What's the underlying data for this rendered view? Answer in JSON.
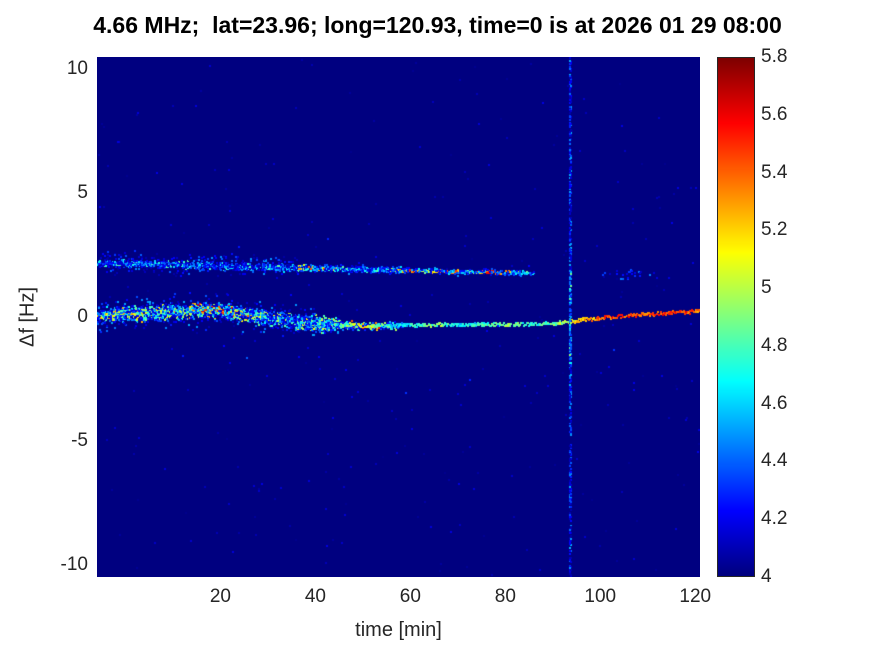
{
  "chart_data": {
    "type": "heatmap",
    "title": "4.66 MHz;  lat=23.96; long=120.93, time=0 is at 2026 01 29 08:00",
    "xlabel": "time [min]",
    "ylabel": "Δf [Hz]",
    "xlim": [
      -6,
      121
    ],
    "ylim": [
      -10.5,
      10.5
    ],
    "xticks": [
      "20",
      "40",
      "60",
      "80",
      "100",
      "120"
    ],
    "yticks": [
      "10",
      "5",
      "0",
      "-5",
      "-10"
    ],
    "grid": false,
    "background_value": 4.0,
    "colorbar": {
      "min": 4,
      "max": 5.8,
      "ticks": [
        "5.8",
        "5.6",
        "5.4",
        "5.2",
        "5",
        "4.8",
        "4.6",
        "4.4",
        "4.2",
        "4"
      ],
      "colormap": "jet",
      "position": "right"
    },
    "features": [
      {
        "type": "band",
        "name": "main-trace-speckle",
        "t_range": [
          -6,
          45
        ],
        "t_step": 0.15,
        "per_step": 6,
        "path": [
          [
            -6,
            0.1
          ],
          [
            0,
            0.15
          ],
          [
            8,
            0.22
          ],
          [
            14,
            0.3
          ],
          [
            20,
            0.28
          ],
          [
            24,
            0.2
          ],
          [
            28,
            0.05
          ],
          [
            33,
            -0.1
          ],
          [
            38,
            -0.2
          ],
          [
            45,
            -0.3
          ]
        ],
        "width": 0.42,
        "values": [
          4.15,
          5.15
        ],
        "bias": 1.7,
        "hot": [
          {
            "t": [
              12,
              26
            ],
            "p": 0.16,
            "values": [
              5.0,
              5.7
            ]
          },
          {
            "t": [
              -6,
              12
            ],
            "p": 0.05,
            "values": [
              4.9,
              5.5
            ]
          }
        ]
      },
      {
        "type": "band",
        "name": "main-trace-core",
        "t_range": [
          -6,
          30
        ],
        "t_step": 0.15,
        "per_step": 2.2,
        "path": [
          [
            -6,
            0.12
          ],
          [
            0,
            0.18
          ],
          [
            8,
            0.24
          ],
          [
            14,
            0.3
          ],
          [
            22,
            0.26
          ],
          [
            30,
            0.05
          ]
        ],
        "width": 0.16,
        "values": [
          4.4,
          5.3
        ],
        "bias": 1.2,
        "hot": [
          {
            "t": [
              14,
              26
            ],
            "p": 0.25,
            "values": [
              5.2,
              5.7
            ]
          }
        ]
      },
      {
        "type": "band",
        "name": "main-trace-halo",
        "t_range": [
          -6,
          40
        ],
        "t_step": 0.15,
        "per_step": 1.4,
        "path": [
          [
            -6,
            0.1
          ],
          [
            8,
            0.22
          ],
          [
            20,
            0.26
          ],
          [
            30,
            0.0
          ],
          [
            40,
            -0.2
          ]
        ],
        "width": 0.85,
        "values": [
          4.08,
          4.55
        ],
        "bias": 1.6
      },
      {
        "type": "band",
        "name": "main-trace-narrow",
        "t_range": [
          40,
          58
        ],
        "t_step": 0.15,
        "per_step": 2.6,
        "path": [
          [
            40,
            -0.2
          ],
          [
            45,
            -0.3
          ],
          [
            50,
            -0.35
          ],
          [
            58,
            -0.3
          ]
        ],
        "width": 0.22,
        "values": [
          4.2,
          5.0
        ],
        "bias": 1.5,
        "hot": [
          {
            "t": [
              47,
              54
            ],
            "p": 0.2,
            "values": [
              5.1,
              5.6
            ]
          }
        ]
      },
      {
        "type": "line",
        "name": "main-trace-line",
        "t_range": [
          45,
          121
        ],
        "t_step": 0.14,
        "path": [
          [
            45,
            -0.3
          ],
          [
            55,
            -0.32
          ],
          [
            65,
            -0.28
          ],
          [
            75,
            -0.28
          ],
          [
            85,
            -0.26
          ],
          [
            90,
            -0.22
          ],
          [
            95,
            -0.1
          ],
          [
            100,
            0.0
          ],
          [
            108,
            0.12
          ],
          [
            115,
            0.2
          ],
          [
            121,
            0.28
          ]
        ],
        "jitter": 0.14,
        "gap_p": 0.12,
        "noise": 0.35,
        "size": 2,
        "values_path": [
          [
            45,
            4.7
          ],
          [
            50,
            5.2
          ],
          [
            53,
            4.8
          ],
          [
            58,
            4.6
          ],
          [
            62,
            4.75
          ],
          [
            66,
            4.9
          ],
          [
            70,
            4.6
          ],
          [
            75,
            4.75
          ],
          [
            80,
            4.9
          ],
          [
            85,
            4.7
          ],
          [
            90,
            4.85
          ],
          [
            95,
            5.15
          ],
          [
            100,
            5.4
          ],
          [
            105,
            5.5
          ],
          [
            110,
            5.45
          ],
          [
            116,
            5.5
          ],
          [
            121,
            5.35
          ]
        ]
      },
      {
        "type": "band",
        "name": "upper-trace-speckle",
        "t_range": [
          -6,
          58
        ],
        "t_step": 0.15,
        "per_step": 2.6,
        "path": [
          [
            -6,
            2.2
          ],
          [
            0,
            2.2
          ],
          [
            10,
            2.15
          ],
          [
            20,
            2.08
          ],
          [
            30,
            2.02
          ],
          [
            40,
            2.0
          ],
          [
            50,
            1.95
          ],
          [
            58,
            1.92
          ]
        ],
        "width": 0.2,
        "values": [
          4.12,
          4.85
        ],
        "bias": 1.8,
        "hot": [
          {
            "t": [
              36,
              44
            ],
            "p": 0.13,
            "values": [
              5.0,
              5.6
            ]
          }
        ]
      },
      {
        "type": "band",
        "name": "upper-trace-halo",
        "t_range": [
          -6,
          36
        ],
        "t_step": 0.15,
        "per_step": 0.9,
        "path": [
          [
            -6,
            2.25
          ],
          [
            10,
            2.2
          ],
          [
            25,
            2.15
          ],
          [
            36,
            2.05
          ]
        ],
        "width": 0.65,
        "values": [
          4.06,
          4.5
        ],
        "bias": 1.7
      },
      {
        "type": "line",
        "name": "upper-trace-line",
        "t_range": [
          55,
          86
        ],
        "t_step": 0.15,
        "path": [
          [
            55,
            1.93
          ],
          [
            60,
            1.9
          ],
          [
            65,
            1.88
          ],
          [
            70,
            1.86
          ],
          [
            75,
            1.85
          ],
          [
            80,
            1.83
          ],
          [
            86,
            1.8
          ]
        ],
        "jitter": 0.12,
        "gap_p": 0.3,
        "noise": 0.4,
        "size": 2,
        "values_path": [
          [
            55,
            4.8
          ],
          [
            58,
            5.3
          ],
          [
            61,
            5.5
          ],
          [
            63,
            4.9
          ],
          [
            66,
            5.4
          ],
          [
            69,
            5.5
          ],
          [
            71,
            4.7
          ],
          [
            74,
            5.2
          ],
          [
            77,
            5.5
          ],
          [
            80,
            5.3
          ],
          [
            83,
            4.8
          ],
          [
            86,
            4.6
          ]
        ]
      },
      {
        "type": "band",
        "name": "upper-trace-line-speckle",
        "t_range": [
          55,
          86
        ],
        "t_step": 0.2,
        "per_step": 1.2,
        "path": [
          [
            55,
            1.93
          ],
          [
            70,
            1.86
          ],
          [
            86,
            1.8
          ]
        ],
        "width": 0.18,
        "values": [
          4.15,
          4.7
        ],
        "bias": 1.6
      },
      {
        "type": "vline",
        "name": "interference-line",
        "t": 93.5,
        "t_width": 0.3,
        "f_range": [
          -10.5,
          10.5
        ],
        "count": 520,
        "values": [
          4.08,
          4.55
        ],
        "bias": 1.6
      },
      {
        "type": "vline",
        "name": "interference-line-core",
        "t": 93.5,
        "t_width": 0.25,
        "f_range": [
          -2,
          2
        ],
        "count": 70,
        "values": [
          4.3,
          5.0
        ],
        "bias": 1.4
      },
      {
        "type": "dots",
        "name": "upper-trace-remnant",
        "count": 26,
        "t_range": [
          100,
          113
        ],
        "f_range": [
          1.55,
          1.95
        ],
        "values": [
          4.1,
          4.55
        ],
        "bias": 1.4
      },
      {
        "type": "dots",
        "name": "background-noise",
        "count": 300,
        "t_range": [
          -6,
          121
        ],
        "f_range": [
          -10.5,
          10.5
        ],
        "values": [
          4.02,
          4.18
        ],
        "bias": 1.0
      },
      {
        "type": "dots",
        "name": "sparse-speckle",
        "count": 18,
        "t_range": [
          -6,
          121
        ],
        "f_range": [
          -3.5,
          4.0
        ],
        "values": [
          4.12,
          4.45
        ],
        "bias": 1.3
      }
    ]
  }
}
